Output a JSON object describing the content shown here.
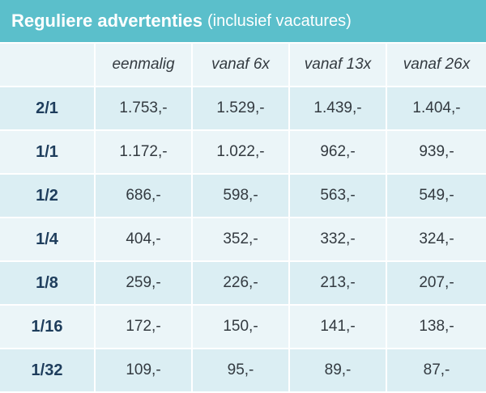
{
  "title": {
    "main": "Reguliere advertenties",
    "sub": "(inclusief vacatures)"
  },
  "table": {
    "headers": [
      "",
      "eenmalig",
      "vanaf 6x",
      "vanaf 13x",
      "vanaf 26x"
    ],
    "rows": [
      {
        "size": "2/1",
        "values": [
          "1.753,-",
          "1.529,-",
          "1.439,-",
          "1.404,-"
        ]
      },
      {
        "size": "1/1",
        "values": [
          "1.172,-",
          "1.022,-",
          "962,-",
          "939,-"
        ]
      },
      {
        "size": "1/2",
        "values": [
          "686,-",
          "598,-",
          "563,-",
          "549,-"
        ]
      },
      {
        "size": "1/4",
        "values": [
          "404,-",
          "352,-",
          "332,-",
          "324,-"
        ]
      },
      {
        "size": "1/8",
        "values": [
          "259,-",
          "226,-",
          "213,-",
          "207,-"
        ]
      },
      {
        "size": "1/16",
        "values": [
          "172,-",
          "150,-",
          "141,-",
          "138,-"
        ]
      },
      {
        "size": "1/32",
        "values": [
          "109,-",
          "95,-",
          "89,-",
          "87,-"
        ]
      }
    ]
  },
  "colors": {
    "title_bar": "#5bbfcb",
    "row_light": "#ebf5f8",
    "row_dark": "#dbeef3",
    "size_text": "#1e3d5c"
  }
}
